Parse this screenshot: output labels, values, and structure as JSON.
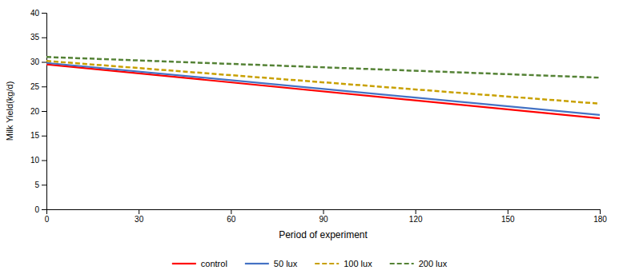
{
  "chart_data": {
    "type": "line",
    "x": [
      0,
      180
    ],
    "series": [
      {
        "name": "control",
        "color": "#FF0000",
        "line_style": "solid",
        "values": [
          29.5,
          18.5
        ]
      },
      {
        "name": "50 lux",
        "color": "#4472C4",
        "line_style": "solid",
        "values": [
          29.8,
          19.2
        ]
      },
      {
        "name": "100 lux",
        "color": "#C8A000",
        "line_style": "dashed",
        "values": [
          30.2,
          21.5
        ]
      },
      {
        "name": "200 lux",
        "color": "#548235",
        "line_style": "dashed",
        "values": [
          31.0,
          26.8
        ]
      }
    ],
    "xlabel": "Period of experiment",
    "ylabel": "Milk Yield(kg/d)",
    "xlim": [
      0,
      180
    ],
    "ylim": [
      0,
      40
    ],
    "xticks": [
      0,
      30,
      60,
      90,
      120,
      150,
      180
    ],
    "yticks": [
      0,
      5,
      10,
      15,
      20,
      25,
      30,
      35,
      40
    ],
    "grid": false,
    "legend": "bottom"
  }
}
